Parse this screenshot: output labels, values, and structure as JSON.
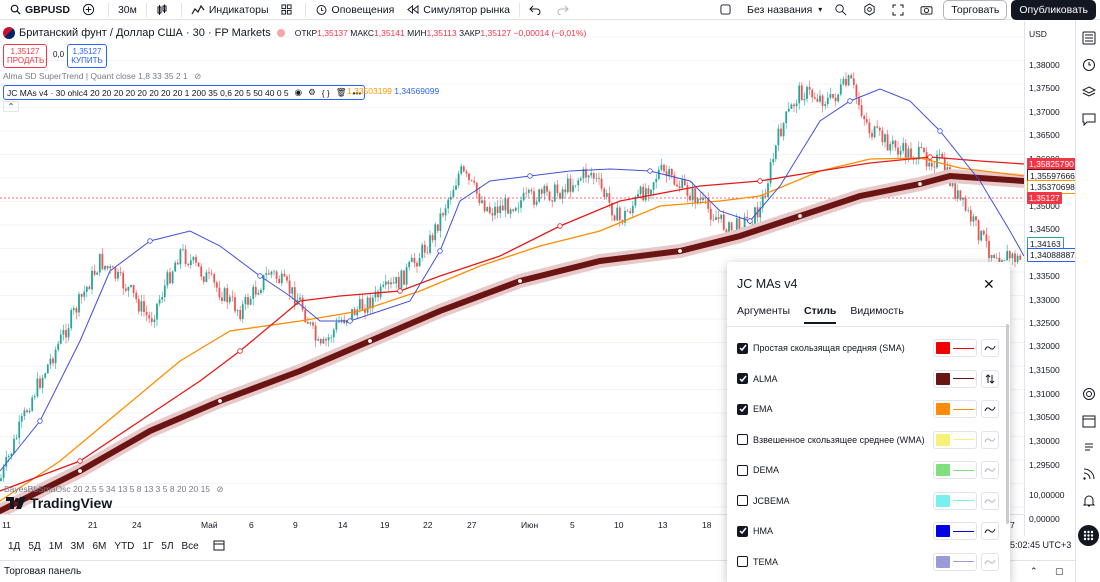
{
  "topbar": {
    "symbol": "GBPUSD",
    "interval": "30м",
    "indicators": "Индикаторы",
    "alerts": "Оповещения",
    "replay": "Симулятор рынка",
    "layout_name": "Без названия",
    "save": "Торговать",
    "publish": "Опубликовать"
  },
  "legend": {
    "title": "Британский фунт / Доллар США · 30 · FP Markets",
    "open_label": "ОТКР",
    "open": "1,35137",
    "high_label": "МАКС",
    "high": "1,35141",
    "low_label": "МИН",
    "low": "1,35113",
    "close_label": "ЗАКР",
    "close": "1,35127",
    "change": "−0,00014 (−0,01%)",
    "sell_price": "1,35127",
    "sell_label": "ПРОДАТЬ",
    "spread": "0,0",
    "buy_price": "1,35127",
    "buy_label": "КУПИТЬ",
    "ind1": "Alma SD SuperTrend | Quant close 1,8 33 35 2 1",
    "ind2": "JC MAs v4 · 30 ohlc4 20 20 20 20 20 20 20 20 1 200 35 0,6 20 5 50 40 0 5",
    "ind2_v1": "1,33503199",
    "ind2_v2": "1,34569099",
    "ind3": "BayesBbSmaOsc 20 2,5 5 34 13 5 8 13 3 5 8 20 20 15",
    "logo": "TradingView"
  },
  "price_axis": {
    "currency": "USD",
    "labels": [
      "1,38000",
      "1,37500",
      "1,37000",
      "1,36500",
      "1,36000",
      "1,35500",
      "1,35000",
      "1,34500",
      "1,34000",
      "1,33500",
      "1,33000",
      "1,32500",
      "1,32000",
      "1,31500",
      "1,31000",
      "1,30500",
      "1,30000",
      "1,29500",
      "10,00000",
      "0,00000"
    ],
    "tags": [
      {
        "text": "1,35825790",
        "color": "#f23645"
      },
      {
        "text": "1,35597666",
        "color": "#6b1414"
      },
      {
        "text": "1,35370698",
        "color": "#ff9800"
      },
      {
        "text": "1,35127",
        "color": "#f23645"
      },
      {
        "text": "1,34163",
        "color": "#26a69a"
      },
      {
        "text": "1,34088887",
        "color": "#2962ff"
      }
    ],
    "time": "5:02:45 UTC+3"
  },
  "time_axis": [
    "11",
    "21",
    "24",
    "Май",
    "6",
    "9",
    "14",
    "19",
    "22",
    "27",
    "Июн",
    "5",
    "10",
    "13",
    "18",
    "7"
  ],
  "periods": [
    "1Д",
    "5Д",
    "1М",
    "3М",
    "6М",
    "YTD",
    "1Г",
    "5Л",
    "Все"
  ],
  "bottom_panel": "Торговая панель",
  "dialog": {
    "title": "JC MAs v4",
    "tabs": [
      "Аргументы",
      "Стиль",
      "Видимость"
    ],
    "rows": [
      {
        "label": "Простая скользящая средняя (SMA)",
        "checked": true,
        "color": "#f00000"
      },
      {
        "label": "ALMA",
        "checked": true,
        "color": "#6b1414"
      },
      {
        "label": "EMA",
        "checked": true,
        "color": "#ff8c00"
      },
      {
        "label": "Взвешенное скользящее среднее (WMA)",
        "checked": false,
        "color": "#f7f07a"
      },
      {
        "label": "DEMA",
        "checked": false,
        "color": "#7ee07e"
      },
      {
        "label": "JCBEMA",
        "checked": false,
        "color": "#78f0f0"
      },
      {
        "label": "HMA",
        "checked": true,
        "color": "#0000e6"
      },
      {
        "label": "TEMA",
        "checked": false,
        "color": "#9b9bd9"
      }
    ]
  }
}
